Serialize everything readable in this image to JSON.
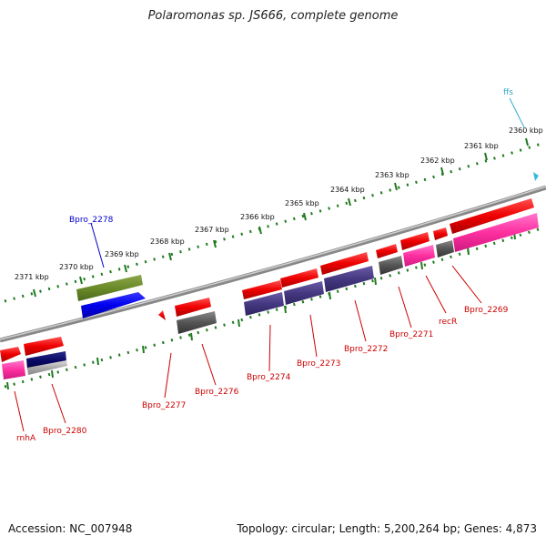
{
  "title": "Polaromonas sp. JS666, complete genome",
  "footer": {
    "accession": "Accession: NC_007948",
    "summary": "Topology: circular; Length: 5,200,264 bp; Genes: 4,873"
  },
  "colors": {
    "backbone": "#8a8a8a",
    "ruler": "#1f7a1f",
    "label_red": "#cc0000",
    "label_blue": "#0000cc",
    "label_cyan": "#33aacc"
  },
  "ruler_labels": [
    {
      "kbp": 2371,
      "text": "2371 kbp"
    },
    {
      "kbp": 2370,
      "text": "2370 kbp"
    },
    {
      "kbp": 2369,
      "text": "2369 kbp"
    },
    {
      "kbp": 2368,
      "text": "2368 kbp"
    },
    {
      "kbp": 2367,
      "text": "2367 kbp"
    },
    {
      "kbp": 2366,
      "text": "2366 kbp"
    },
    {
      "kbp": 2365,
      "text": "2365 kbp"
    },
    {
      "kbp": 2364,
      "text": "2364 kbp"
    },
    {
      "kbp": 2363,
      "text": "2363 kbp"
    },
    {
      "kbp": 2362,
      "text": "2362 kbp"
    },
    {
      "kbp": 2361,
      "text": "2361 kbp"
    },
    {
      "kbp": 2360,
      "text": "2360 kbp"
    }
  ],
  "gene_labels": [
    {
      "id": "ffs",
      "text": "ffs",
      "color": "#33aacc"
    },
    {
      "id": "Bpro_2278",
      "text": "Bpro_2278",
      "color": "#0000cc"
    },
    {
      "id": "rnhA",
      "text": "rnhA",
      "color": "#cc0000"
    },
    {
      "id": "Bpro_2280",
      "text": "Bpro_2280",
      "color": "#cc0000"
    },
    {
      "id": "Bpro_2277",
      "text": "Bpro_2277",
      "color": "#cc0000"
    },
    {
      "id": "Bpro_2276",
      "text": "Bpro_2276",
      "color": "#cc0000"
    },
    {
      "id": "Bpro_2274",
      "text": "Bpro_2274",
      "color": "#cc0000"
    },
    {
      "id": "Bpro_2273",
      "text": "Bpro_2273",
      "color": "#cc0000"
    },
    {
      "id": "Bpro_2272",
      "text": "Bpro_2272",
      "color": "#cc0000"
    },
    {
      "id": "Bpro_2271",
      "text": "Bpro_2271",
      "color": "#cc0000"
    },
    {
      "id": "recR",
      "text": "recR",
      "color": "#cc0000"
    },
    {
      "id": "Bpro_2269",
      "text": "Bpro_2269",
      "color": "#cc0000"
    }
  ]
}
